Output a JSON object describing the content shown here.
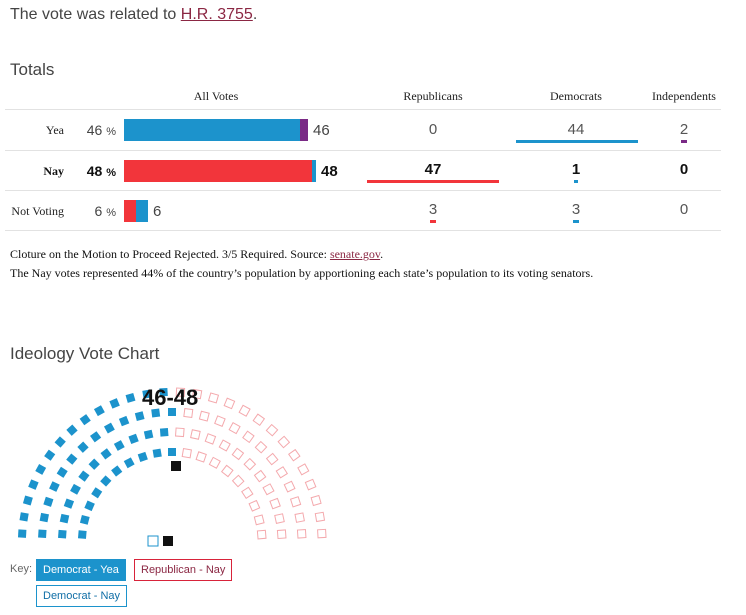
{
  "intro": {
    "text": "The vote was related to ",
    "link": "H.R. 3755",
    "end": "."
  },
  "totals": {
    "heading": "Totals",
    "headers": {
      "all_votes": "All Votes",
      "republicans": "Republicans",
      "democrats": "Democrats",
      "independents": "Independents"
    },
    "rows": [
      {
        "label": "Yea",
        "pct": "46",
        "pct_unit": "%",
        "count": "46",
        "rep": "0",
        "dem": "44",
        "ind": "2"
      },
      {
        "label": "Nay",
        "pct": "48",
        "pct_unit": "%",
        "count": "48",
        "rep": "47",
        "dem": "1",
        "ind": "0"
      },
      {
        "label": "Not Voting",
        "pct": "6",
        "pct_unit": "%",
        "count": "6",
        "rep": "3",
        "dem": "3",
        "ind": "0"
      }
    ]
  },
  "notes": {
    "line1_text": "Cloture on the Motion to Proceed Rejected. 3/5 Required. Source: ",
    "line1_link": "senate.gov",
    "line1_end": ".",
    "line2": "The Nay votes represented 44% of the country’s population by apportioning each state’s population to its voting senators."
  },
  "ideology": {
    "heading": "Ideology Vote Chart",
    "score": "46-48",
    "key_label": "Key:",
    "keys": {
      "dem_yea": "Democrat - Yea",
      "rep_nay": "Republican - Nay",
      "dem_nay": "Democrat - Nay"
    }
  },
  "colors": {
    "democrat": "#1c93cc",
    "republican": "#f2353b",
    "independent": "#7a2a86",
    "link": "#8b2743"
  }
}
